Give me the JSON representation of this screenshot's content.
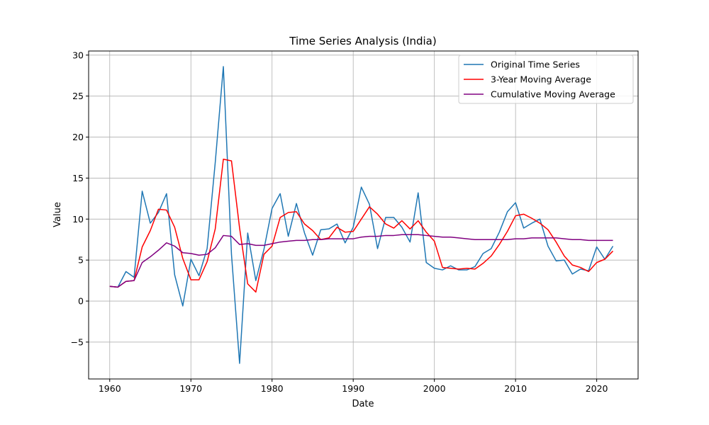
{
  "chart_data": {
    "type": "line",
    "title": "Time Series Analysis (India)",
    "xlabel": "Date",
    "ylabel": "Value",
    "xlim": [
      1957.4,
      2025.1
    ],
    "ylim": [
      -9.5,
      30.5
    ],
    "xticks": [
      1960,
      1970,
      1980,
      1990,
      2000,
      2010,
      2020
    ],
    "yticks": [
      -5,
      0,
      5,
      10,
      15,
      20,
      25,
      30
    ],
    "ytick_labels": [
      "−5",
      "0",
      "5",
      "10",
      "15",
      "20",
      "25",
      "30"
    ],
    "grid": true,
    "legend_position": "top-right",
    "x": [
      1960,
      1961,
      1962,
      1963,
      1964,
      1965,
      1966,
      1967,
      1968,
      1969,
      1970,
      1971,
      1972,
      1973,
      1974,
      1975,
      1976,
      1977,
      1978,
      1979,
      1980,
      1981,
      1982,
      1983,
      1984,
      1985,
      1986,
      1987,
      1988,
      1989,
      1990,
      1991,
      1992,
      1993,
      1994,
      1995,
      1996,
      1997,
      1998,
      1999,
      2000,
      2001,
      2002,
      2003,
      2004,
      2005,
      2006,
      2007,
      2008,
      2009,
      2010,
      2011,
      2012,
      2013,
      2014,
      2015,
      2016,
      2017,
      2018,
      2019,
      2020,
      2021,
      2022
    ],
    "series": [
      {
        "name": "Original Time Series",
        "color": "#1f77b4",
        "values": [
          1.8,
          1.7,
          3.6,
          2.9,
          13.4,
          9.5,
          10.8,
          13.1,
          3.2,
          -0.6,
          5.1,
          3.1,
          6.4,
          16.9,
          28.6,
          5.7,
          -7.6,
          8.3,
          2.5,
          6.3,
          11.3,
          13.1,
          7.9,
          11.9,
          8.3,
          5.6,
          8.7,
          8.8,
          9.4,
          7.1,
          9.0,
          13.9,
          11.8,
          6.4,
          10.2,
          10.2,
          9.0,
          7.2,
          13.2,
          4.7,
          4.0,
          3.8,
          4.3,
          3.8,
          3.8,
          4.2,
          5.8,
          6.4,
          8.4,
          10.9,
          12.0,
          8.9,
          9.5,
          10.0,
          6.7,
          4.9,
          5.0,
          3.3,
          3.9,
          3.7,
          6.6,
          5.1,
          6.7
        ]
      },
      {
        "name": "3-Year Moving Average",
        "color": "#ff0000",
        "values": [
          1.8,
          1.7,
          2.4,
          2.5,
          6.6,
          8.6,
          11.2,
          11.1,
          9.0,
          5.2,
          2.6,
          2.6,
          4.8,
          8.8,
          17.3,
          17.1,
          8.9,
          2.1,
          1.1,
          5.7,
          6.7,
          10.2,
          10.8,
          10.9,
          9.4,
          8.6,
          7.5,
          7.7,
          9.0,
          8.4,
          8.5,
          10.0,
          11.5,
          10.6,
          9.4,
          8.9,
          9.8,
          8.8,
          9.8,
          8.4,
          7.3,
          4.1,
          4.0,
          3.9,
          4.0,
          3.9,
          4.6,
          5.5,
          6.9,
          8.5,
          10.4,
          10.6,
          10.1,
          9.5,
          8.7,
          7.2,
          5.5,
          4.4,
          4.1,
          3.6,
          4.7,
          5.1,
          6.1
        ]
      },
      {
        "name": "Cumulative Moving Average",
        "color": "#800080",
        "values": [
          1.8,
          1.7,
          2.4,
          2.5,
          4.7,
          5.4,
          6.2,
          7.1,
          6.7,
          5.9,
          5.8,
          5.6,
          5.7,
          6.5,
          8.0,
          7.9,
          6.9,
          7.0,
          6.8,
          6.8,
          7.0,
          7.2,
          7.3,
          7.4,
          7.4,
          7.5,
          7.5,
          7.6,
          7.6,
          7.6,
          7.6,
          7.8,
          7.9,
          7.9,
          8.0,
          8.0,
          8.1,
          8.1,
          8.1,
          8.0,
          7.9,
          7.8,
          7.8,
          7.7,
          7.6,
          7.5,
          7.5,
          7.5,
          7.5,
          7.5,
          7.6,
          7.6,
          7.7,
          7.7,
          7.7,
          7.7,
          7.6,
          7.5,
          7.5,
          7.4,
          7.4,
          7.4,
          7.4
        ]
      }
    ]
  }
}
